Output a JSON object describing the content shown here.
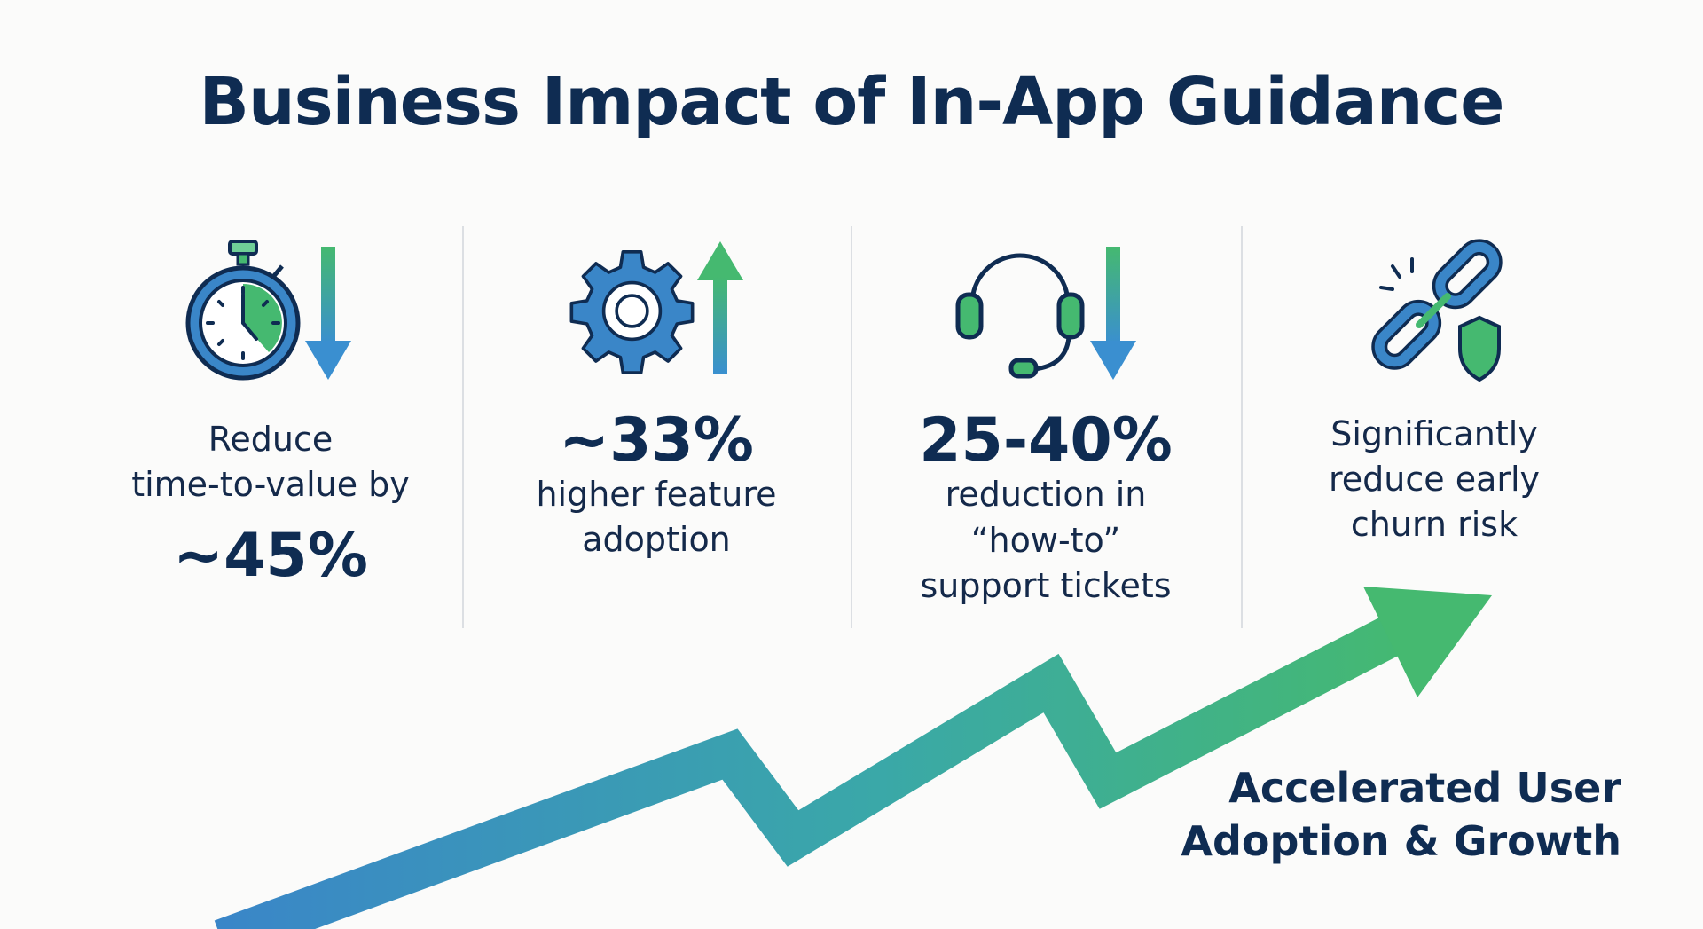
{
  "title": "Business Impact of In-App Guidance",
  "colors": {
    "navy": "#0f2c52",
    "blue": "#3a86c8",
    "green": "#45b970"
  },
  "metrics": [
    {
      "icon": "stopwatch-icon",
      "trend": "down",
      "line1": "Reduce",
      "line2": "time-to-value by",
      "value": "~45%"
    },
    {
      "icon": "gear-icon",
      "trend": "up",
      "value": "~33%",
      "line1": "higher feature",
      "line2": "adoption"
    },
    {
      "icon": "headset-icon",
      "trend": "down",
      "value": "25-40%",
      "line1": "reduction in",
      "line2": "“how-to”",
      "line3": "support tickets"
    },
    {
      "icon": "broken-chain-shield-icon",
      "line1": "Significantly",
      "line2": "reduce early",
      "line3": "churn risk"
    }
  ],
  "growth": {
    "line1": "Accelerated User",
    "line2": "Adoption & Growth"
  }
}
